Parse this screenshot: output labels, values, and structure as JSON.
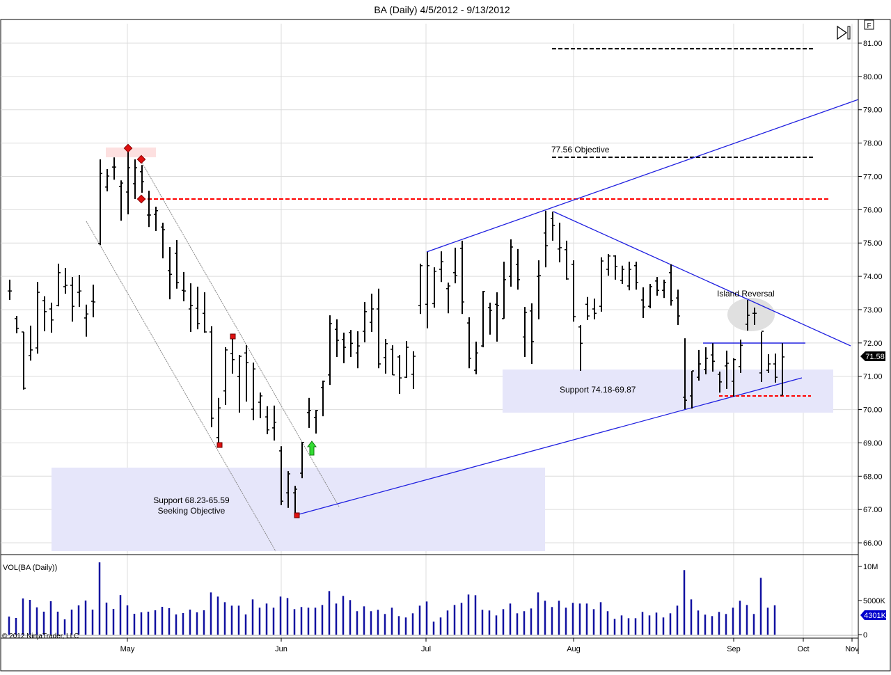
{
  "window": {
    "title": "BA (Daily)  4/5/2012 - 9/13/2012",
    "f_button": "F",
    "copyright": "© 2012 NinjaTrader, LLC"
  },
  "chart_data": [
    {
      "type": "ohlc",
      "title": "BA (Daily)  4/5/2012 - 9/13/2012",
      "ylim": [
        65.7,
        81.4
      ],
      "grid": true,
      "y_ticks": [
        "81.00",
        "80.00",
        "79.00",
        "78.00",
        "77.00",
        "76.00",
        "75.00",
        "74.00",
        "73.00",
        "72.00",
        "71.00",
        "70.00",
        "69.00",
        "68.00",
        "67.00",
        "66.00"
      ],
      "x_ticks": [
        "May",
        "Jun",
        "Jul",
        "Aug",
        "Sep",
        "Oct",
        "Nov"
      ],
      "last_price": "71.58",
      "ohlc_columns": [
        "open",
        "high",
        "low",
        "close"
      ],
      "bars": [
        [
          73.56,
          73.9,
          73.29,
          73.56
        ],
        [
          72.73,
          72.81,
          72.29,
          72.44
        ],
        [
          72.33,
          72.33,
          70.6,
          70.64
        ],
        [
          71.62,
          72.52,
          71.47,
          71.79
        ],
        [
          71.85,
          73.83,
          71.68,
          73.52
        ],
        [
          73.27,
          73.4,
          72.35,
          72.94
        ],
        [
          73.02,
          73.21,
          72.31,
          72.69
        ],
        [
          73.12,
          74.38,
          73.1,
          74.11
        ],
        [
          73.69,
          74.25,
          73.48,
          73.73
        ],
        [
          73.73,
          73.98,
          72.64,
          73.1
        ],
        [
          73.52,
          74.04,
          73.08,
          73.56
        ],
        [
          72.75,
          73.15,
          72.19,
          72.87
        ],
        [
          73.25,
          73.75,
          72.77,
          73.23
        ],
        [
          74.98,
          77.51,
          74.94,
          77.09
        ],
        [
          76.68,
          77.22,
          76.55,
          77.01
        ],
        [
          77.28,
          77.57,
          76.9,
          77.28
        ],
        [
          76.7,
          76.88,
          75.67,
          76.8
        ],
        [
          76.53,
          77.84,
          75.86,
          77.26
        ],
        [
          76.78,
          77.51,
          76.32,
          77.26
        ],
        [
          77.14,
          77.34,
          76.51,
          76.84
        ],
        [
          75.84,
          76.57,
          75.48,
          75.84
        ],
        [
          75.86,
          76.09,
          75.36,
          75.97
        ],
        [
          75.48,
          75.61,
          74.54,
          75.4
        ],
        [
          74.17,
          74.88,
          73.31,
          74.06
        ],
        [
          74.69,
          75.09,
          73.63,
          73.81
        ],
        [
          73.58,
          74.13,
          73.25,
          73.56
        ],
        [
          73.02,
          73.79,
          72.33,
          73.12
        ],
        [
          73.04,
          73.69,
          72.41,
          72.58
        ],
        [
          72.89,
          73.52,
          72.31,
          72.33
        ],
        [
          72.33,
          72.5,
          69.47,
          69.74
        ],
        [
          69.16,
          70.35,
          68.97,
          70.05
        ],
        [
          70.56,
          71.87,
          70.14,
          71.79
        ],
        [
          71.68,
          72.27,
          71.08,
          71.5
        ],
        [
          70.99,
          71.64,
          69.91,
          71.6
        ],
        [
          71.7,
          71.93,
          70.24,
          71.41
        ],
        [
          70.01,
          71.41,
          69.68,
          71.22
        ],
        [
          70.22,
          70.51,
          69.74,
          70.41
        ],
        [
          69.78,
          70.1,
          69.26,
          69.39
        ],
        [
          69.45,
          70.12,
          69.07,
          69.62
        ],
        [
          68.76,
          68.9,
          67.13,
          67.25
        ],
        [
          67.5,
          68.15,
          67.05,
          68.07
        ],
        [
          67.5,
          67.71,
          66.84,
          67.61
        ],
        [
          68.09,
          69.03,
          67.94,
          69.01
        ],
        [
          69.91,
          70.35,
          69.45,
          69.97
        ],
        [
          69.76,
          69.99,
          69.28,
          69.97
        ],
        [
          70.66,
          70.87,
          69.8,
          70.85
        ],
        [
          71.04,
          72.83,
          70.74,
          72.58
        ],
        [
          72.41,
          72.71,
          71.58,
          72.08
        ],
        [
          72.1,
          72.31,
          71.39,
          71.87
        ],
        [
          72.31,
          72.39,
          71.58,
          71.99
        ],
        [
          71.7,
          72.35,
          71.24,
          71.91
        ],
        [
          72.35,
          73.23,
          72.02,
          72.94
        ],
        [
          72.62,
          73.48,
          72.33,
          73.02
        ],
        [
          73.02,
          73.63,
          71.24,
          71.37
        ],
        [
          71.56,
          72.12,
          71.08,
          71.98
        ],
        [
          71.81,
          71.93,
          71.04,
          71.04
        ],
        [
          71.58,
          71.64,
          70.47,
          70.95
        ],
        [
          70.97,
          72.06,
          70.95,
          71.87
        ],
        [
          71.06,
          71.75,
          70.62,
          71.6
        ],
        [
          73.12,
          74.38,
          72.87,
          74.32
        ],
        [
          73.16,
          74.73,
          72.44,
          74.32
        ],
        [
          73.18,
          74.27,
          73.06,
          74.15
        ],
        [
          74.21,
          74.75,
          73.83,
          74.44
        ],
        [
          73.63,
          73.81,
          72.89,
          73.71
        ],
        [
          74.11,
          74.86,
          73.79,
          74.02
        ],
        [
          74.84,
          75.07,
          72.87,
          73.23
        ],
        [
          72.6,
          72.77,
          71.24,
          71.54
        ],
        [
          71.18,
          72.04,
          71.06,
          71.7
        ],
        [
          71.91,
          73.56,
          71.87,
          73.54
        ],
        [
          73.06,
          73.21,
          72.25,
          72.98
        ],
        [
          73.16,
          73.52,
          72.04,
          73.12
        ],
        [
          72.73,
          74.44,
          72.73,
          73.9
        ],
        [
          74.0,
          75.11,
          73.69,
          74.88
        ],
        [
          74.36,
          74.82,
          73.6,
          73.9
        ],
        [
          72.18,
          73.08,
          71.58,
          72.92
        ],
        [
          72.96,
          73.19,
          71.37,
          72.04
        ],
        [
          74.0,
          74.48,
          72.71,
          74.02
        ],
        [
          75.3,
          75.97,
          74.27,
          74.92
        ],
        [
          75.74,
          75.94,
          75.07,
          75.53
        ],
        [
          74.82,
          75.61,
          74.42,
          74.86
        ],
        [
          74.8,
          75.07,
          73.9,
          73.92
        ],
        [
          74.36,
          74.48,
          72.64,
          72.79
        ],
        [
          72.48,
          72.54,
          71.16,
          71.99
        ],
        [
          73.16,
          73.38,
          72.69,
          72.81
        ],
        [
          73.02,
          73.33,
          72.71,
          72.89
        ],
        [
          73.1,
          74.57,
          72.94,
          74.46
        ],
        [
          74.21,
          74.67,
          74.02,
          74.61
        ],
        [
          74.61,
          74.63,
          73.9,
          74.29
        ],
        [
          73.88,
          74.32,
          73.77,
          74.21
        ],
        [
          73.71,
          74.44,
          73.58,
          74.21
        ],
        [
          74.32,
          74.44,
          73.6,
          73.81
        ],
        [
          73.29,
          73.67,
          72.75,
          73.08
        ],
        [
          73.1,
          73.77,
          73.04,
          73.69
        ],
        [
          73.86,
          73.98,
          73.42,
          73.58
        ],
        [
          73.58,
          73.9,
          73.35,
          73.81
        ],
        [
          74.11,
          74.36,
          73.12,
          73.27
        ],
        [
          73.35,
          73.6,
          72.54,
          72.81
        ],
        [
          70.37,
          72.14,
          70.01,
          70.28
        ],
        [
          70.41,
          71.16,
          70.03,
          71.16
        ],
        [
          70.97,
          71.79,
          70.87,
          71.37
        ],
        [
          71.2,
          71.87,
          71.06,
          71.54
        ],
        [
          71.64,
          71.99,
          71.14,
          71.45
        ],
        [
          71.06,
          71.14,
          70.51,
          70.83
        ],
        [
          71.31,
          71.77,
          70.62,
          71.39
        ],
        [
          70.85,
          71.54,
          70.39,
          71.5
        ],
        [
          71.29,
          72.1,
          71.1,
          71.93
        ],
        [
          72.56,
          73.29,
          72.37,
          72.83
        ],
        [
          72.89,
          73.06,
          72.54,
          72.89
        ],
        [
          71.1,
          72.33,
          70.83,
          72.35
        ],
        [
          71.18,
          71.66,
          71.1,
          71.37
        ],
        [
          71.37,
          71.68,
          70.81,
          70.97
        ],
        [
          70.43,
          71.99,
          70.43,
          71.58
        ]
      ],
      "annotations": {
        "objective_label": "77.56 Objective",
        "support_upper_label": "Support 74.18-69.87",
        "support_lower_label_1": "Support 68.23-65.59",
        "support_lower_label_2": "Seeking Objective",
        "island_label": "Island Reversal"
      },
      "colors": {
        "bars": "#000000",
        "trendlines": "#2020e0",
        "resistance": "#ff0000",
        "support_zone": "#e6e6fa",
        "markers": "#e01010",
        "signal_arrow": "#22cc22"
      }
    },
    {
      "type": "bar",
      "title": "VOL(BA (Daily))",
      "y_ticks": [
        "10M",
        "5000K",
        "0"
      ],
      "last_value": "4301K",
      "unit": "M",
      "values": [
        2.65,
        2.45,
        5.3,
        5.1,
        4.0,
        3.37,
        4.9,
        3.37,
        2.24,
        3.67,
        4.29,
        5.0,
        3.67,
        10.6,
        4.7,
        3.78,
        5.8,
        4.29,
        3.06,
        3.27,
        3.37,
        3.57,
        4.08,
        3.88,
        2.96,
        3.16,
        3.67,
        3.27,
        3.57,
        6.19,
        5.58,
        4.76,
        4.25,
        4.25,
        2.96,
        5.17,
        3.95,
        4.56,
        3.95,
        5.58,
        5.37,
        3.74,
        4.05,
        3.95,
        3.95,
        4.35,
        6.39,
        4.56,
        5.68,
        5.07,
        3.44,
        4.15,
        3.44,
        3.64,
        3.03,
        3.95,
        2.72,
        2.52,
        3.13,
        4.25,
        4.86,
        1.9,
        2.52,
        3.54,
        4.35,
        4.66,
        5.88,
        5.78,
        3.64,
        3.54,
        2.82,
        3.74,
        4.56,
        3.13,
        3.44,
        3.84,
        6.19,
        4.97,
        4.05,
        4.97,
        3.95,
        4.66,
        4.56,
        4.56,
        3.74,
        4.76,
        3.44,
        2.31,
        2.82,
        2.41,
        2.41,
        3.33,
        2.82,
        3.23,
        2.52,
        3.13,
        4.25,
        9.46,
        5.17,
        3.54,
        2.93,
        2.72,
        3.33,
        3.03,
        3.95,
        4.97,
        4.35,
        3.03,
        8.33,
        3.95,
        4.301
      ],
      "colors": {
        "bars": "#1010a0",
        "label_bg": "#0000cc"
      }
    }
  ]
}
